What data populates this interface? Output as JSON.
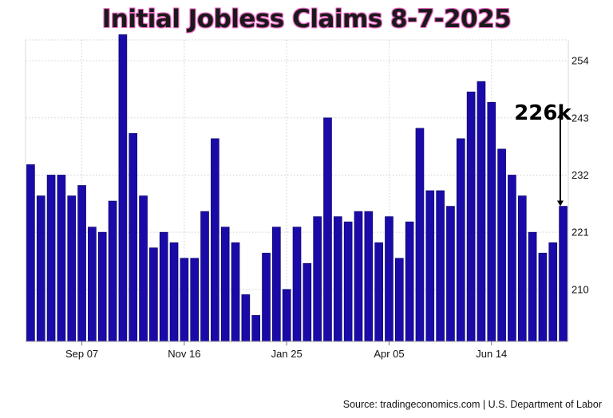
{
  "title": "Initial Jobless Claims 8-7-2025",
  "source": "Source: tradingeconomics.com | U.S. Department of Labor",
  "annotation": {
    "label": "226k",
    "from": 244,
    "to": 226
  },
  "colors": {
    "bar": "#1a0aa8",
    "bar_edge": "#060060",
    "title_glow": "#f06ac8"
  },
  "chart_data": {
    "type": "bar",
    "title": "Initial Jobless Claims 8-7-2025",
    "xlabel": "",
    "ylabel": "",
    "ylim": [
      200,
      258
    ],
    "yticks": [
      210,
      221,
      232,
      243,
      254
    ],
    "grid": true,
    "x_tick_labels": [
      {
        "label": "Sep 07",
        "index": 5
      },
      {
        "label": "Nov 16",
        "index": 15
      },
      {
        "label": "Jan 25",
        "index": 25
      },
      {
        "label": "Apr 05",
        "index": 35
      },
      {
        "label": "Jun 14",
        "index": 45
      }
    ],
    "values": [
      234,
      228,
      232,
      232,
      228,
      230,
      222,
      221,
      227,
      259,
      240,
      228,
      218,
      221,
      219,
      216,
      216,
      225,
      239,
      222,
      219,
      209,
      205,
      217,
      222,
      210,
      222,
      215,
      224,
      243,
      224,
      223,
      225,
      225,
      219,
      224,
      216,
      223,
      241,
      229,
      229,
      226,
      239,
      248,
      250,
      246,
      237,
      232,
      228,
      221,
      217,
      219,
      226
    ]
  }
}
